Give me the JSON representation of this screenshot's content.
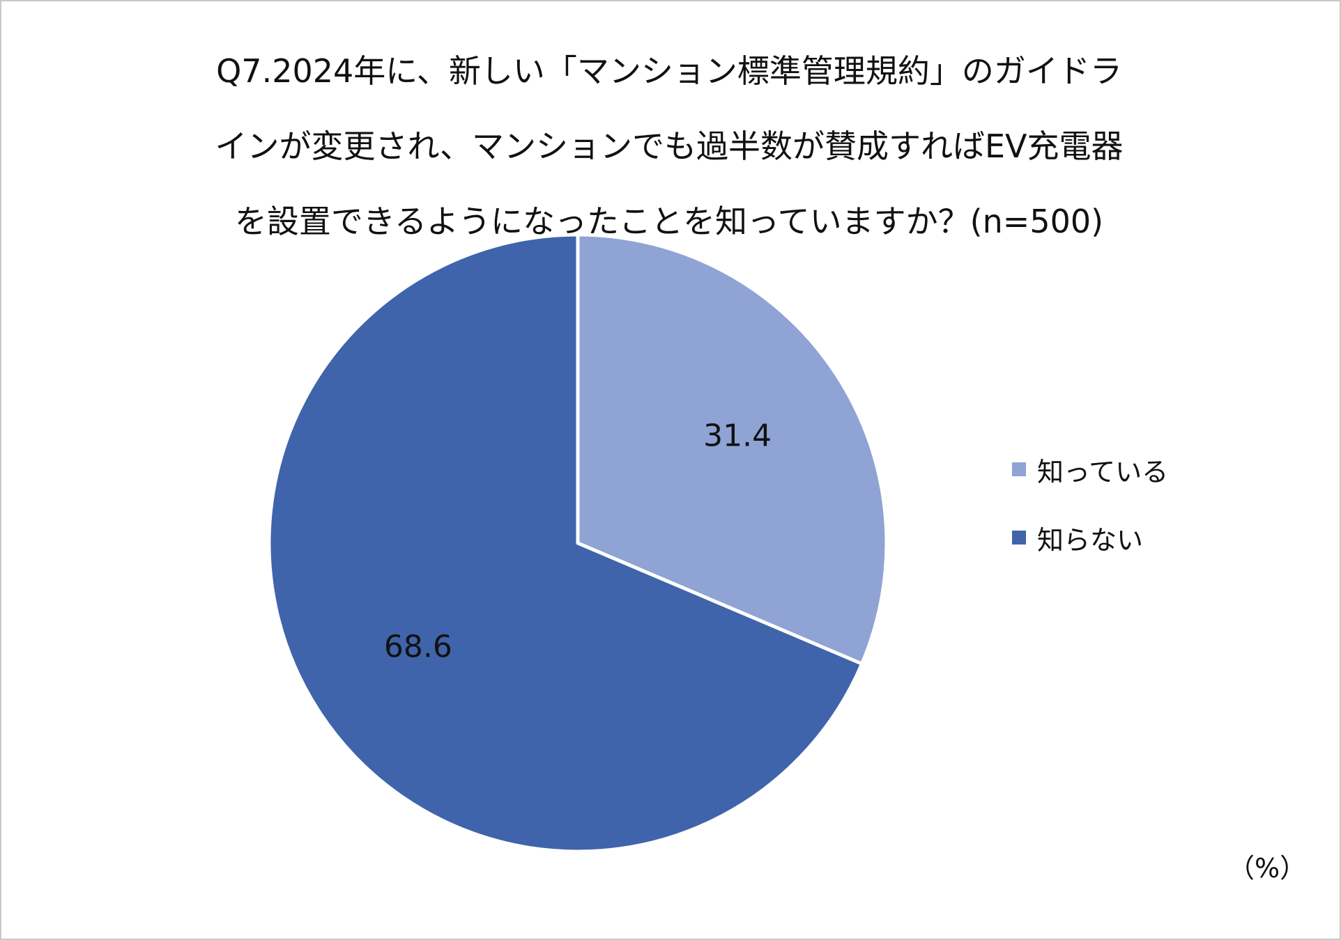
{
  "chart_data": {
    "type": "pie",
    "title_lines": [
      "Q7.2024年に、新しい「マンション標準管理規約」のガイドラ",
      "インが変更され、マンションでも過半数が賛成すればEV充電器",
      "を設置できるようになったことを知っていますか？(n=500)"
    ],
    "unit": "（%）",
    "start_angle_deg": 0,
    "direction": "clockwise",
    "slices": [
      {
        "label": "知っている",
        "value": 31.4,
        "display": "31.4",
        "color": "#8fa3d4"
      },
      {
        "label": "知らない",
        "value": 68.6,
        "display": "68.6",
        "color": "#3f64ab"
      }
    ],
    "legend_position": "right"
  }
}
